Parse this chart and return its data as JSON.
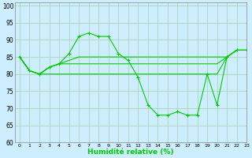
{
  "xlabel": "Humidité relative (%)",
  "background_color": "#cceeff",
  "grid_color": "#aaccaa",
  "line_color": "#00cc00",
  "xlim": [
    -0.5,
    23
  ],
  "ylim": [
    60,
    101
  ],
  "yticks": [
    60,
    65,
    70,
    75,
    80,
    85,
    90,
    95,
    100
  ],
  "xticks": [
    0,
    1,
    2,
    3,
    4,
    5,
    6,
    7,
    8,
    9,
    10,
    11,
    12,
    13,
    14,
    15,
    16,
    17,
    18,
    19,
    20,
    21,
    22,
    23
  ],
  "series": [
    {
      "x": [
        0,
        1,
        2,
        3,
        4,
        5,
        6,
        7,
        8,
        9,
        10,
        11,
        12,
        13,
        14,
        15,
        16,
        17,
        18,
        19,
        20,
        21,
        22,
        23
      ],
      "y": [
        85,
        81,
        80,
        82,
        83,
        86,
        91,
        92,
        91,
        91,
        86,
        84,
        79,
        71,
        68,
        68,
        69,
        68,
        68,
        80,
        71,
        85,
        87,
        87
      ],
      "marker": true
    },
    {
      "x": [
        0,
        1,
        2,
        3,
        4,
        5,
        6,
        7,
        8,
        9,
        10,
        11,
        12,
        13,
        14,
        15,
        16,
        17,
        18,
        19,
        20,
        21,
        22,
        23
      ],
      "y": [
        85,
        81,
        80,
        82,
        83,
        84,
        85,
        85,
        85,
        85,
        85,
        85,
        85,
        85,
        85,
        85,
        85,
        85,
        85,
        85,
        85,
        85,
        87,
        87
      ],
      "marker": false
    },
    {
      "x": [
        0,
        1,
        2,
        3,
        4,
        5,
        6,
        7,
        8,
        9,
        10,
        11,
        12,
        13,
        14,
        15,
        16,
        17,
        18,
        19,
        20,
        21,
        22,
        23
      ],
      "y": [
        85,
        81,
        80,
        82,
        83,
        83,
        83,
        83,
        83,
        83,
        83,
        83,
        83,
        83,
        83,
        83,
        83,
        83,
        83,
        83,
        83,
        85,
        87,
        87
      ],
      "marker": false
    },
    {
      "x": [
        0,
        1,
        2,
        3,
        4,
        5,
        6,
        7,
        8,
        9,
        10,
        11,
        12,
        13,
        14,
        15,
        16,
        17,
        18,
        19,
        20,
        21,
        22,
        23
      ],
      "y": [
        85,
        81,
        80,
        80,
        80,
        80,
        80,
        80,
        80,
        80,
        80,
        80,
        80,
        80,
        80,
        80,
        80,
        80,
        80,
        80,
        80,
        85,
        87,
        87
      ],
      "marker": false
    }
  ]
}
